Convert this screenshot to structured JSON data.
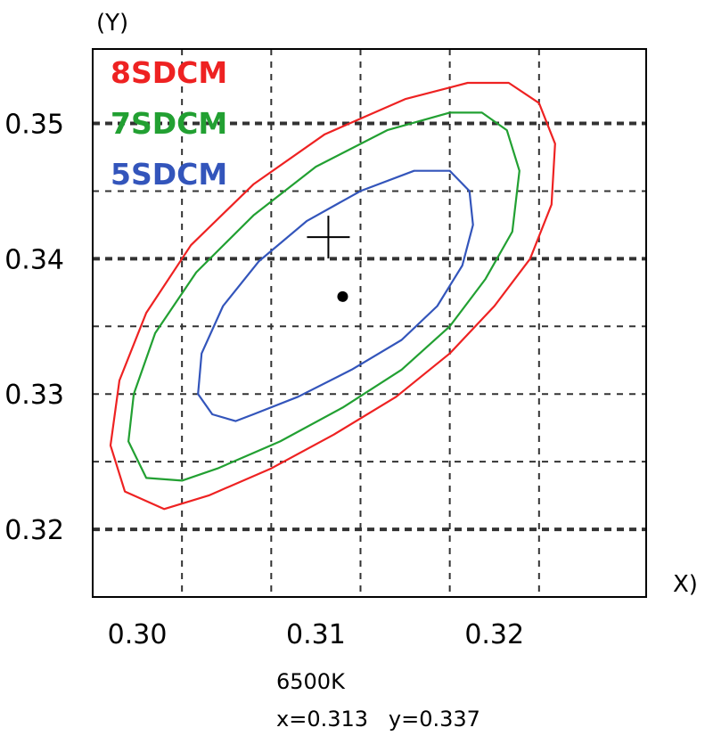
{
  "chart_data": {
    "type": "line",
    "title": "",
    "xlabel": "X)",
    "ylabel": "(Y)",
    "xlim": [
      0.2975,
      0.3285
    ],
    "ylim": [
      0.315,
      0.3555
    ],
    "x_ticks": [
      {
        "value": 0.3,
        "label": "0.30"
      },
      {
        "value": 0.31,
        "label": "0.31"
      },
      {
        "value": 0.32,
        "label": "0.32"
      }
    ],
    "y_ticks": [
      {
        "value": 0.32,
        "label": "0.32"
      },
      {
        "value": 0.33,
        "label": "0.33"
      },
      {
        "value": 0.34,
        "label": "0.34"
      },
      {
        "value": 0.35,
        "label": "0.35"
      }
    ],
    "grid_x": [
      0.3025,
      0.3075,
      0.3125,
      0.3175,
      0.3225
    ],
    "grid_y_major": [
      0.32,
      0.34,
      0.35
    ],
    "grid_y_minor": [
      0.325,
      0.33,
      0.335,
      0.345
    ],
    "grid": true,
    "legend_position": "top-left",
    "series": [
      {
        "name": "8SDCM",
        "color": "#ee2222",
        "closed": true,
        "points": [
          [
            0.3208,
            0.353
          ],
          [
            0.3225,
            0.3515
          ],
          [
            0.3234,
            0.3485
          ],
          [
            0.3232,
            0.344
          ],
          [
            0.322,
            0.34
          ],
          [
            0.32,
            0.3365
          ],
          [
            0.3175,
            0.333
          ],
          [
            0.3145,
            0.3298
          ],
          [
            0.311,
            0.327
          ],
          [
            0.3075,
            0.3245
          ],
          [
            0.304,
            0.3225
          ],
          [
            0.3015,
            0.3215
          ],
          [
            0.2993,
            0.3228
          ],
          [
            0.2985,
            0.3262
          ],
          [
            0.299,
            0.331
          ],
          [
            0.3005,
            0.336
          ],
          [
            0.303,
            0.341
          ],
          [
            0.3065,
            0.3455
          ],
          [
            0.3105,
            0.3492
          ],
          [
            0.315,
            0.3518
          ],
          [
            0.3185,
            0.353
          ]
        ]
      },
      {
        "name": "7SDCM",
        "color": "#22a032",
        "closed": true,
        "points": [
          [
            0.3193,
            0.3508
          ],
          [
            0.3207,
            0.3495
          ],
          [
            0.3214,
            0.3465
          ],
          [
            0.321,
            0.342
          ],
          [
            0.3195,
            0.3385
          ],
          [
            0.3175,
            0.335
          ],
          [
            0.3148,
            0.3318
          ],
          [
            0.3115,
            0.329
          ],
          [
            0.308,
            0.3265
          ],
          [
            0.3045,
            0.3245
          ],
          [
            0.3025,
            0.3236
          ],
          [
            0.3005,
            0.3238
          ],
          [
            0.2995,
            0.3265
          ],
          [
            0.2998,
            0.33
          ],
          [
            0.301,
            0.3345
          ],
          [
            0.3033,
            0.339
          ],
          [
            0.3065,
            0.3432
          ],
          [
            0.31,
            0.3468
          ],
          [
            0.314,
            0.3495
          ],
          [
            0.3175,
            0.3508
          ]
        ]
      },
      {
        "name": "5SDCM",
        "color": "#3355bb",
        "closed": true,
        "points": [
          [
            0.3175,
            0.3465
          ],
          [
            0.3186,
            0.345
          ],
          [
            0.3188,
            0.3425
          ],
          [
            0.3182,
            0.3395
          ],
          [
            0.3168,
            0.3365
          ],
          [
            0.3148,
            0.334
          ],
          [
            0.312,
            0.3318
          ],
          [
            0.309,
            0.3298
          ],
          [
            0.3065,
            0.3285
          ],
          [
            0.3055,
            0.328
          ],
          [
            0.3042,
            0.3285
          ],
          [
            0.3034,
            0.33
          ],
          [
            0.3036,
            0.333
          ],
          [
            0.3048,
            0.3365
          ],
          [
            0.3068,
            0.3398
          ],
          [
            0.3095,
            0.3428
          ],
          [
            0.3125,
            0.345
          ],
          [
            0.3155,
            0.3465
          ]
        ]
      }
    ],
    "center_point": {
      "x": 0.3115,
      "y": 0.3372
    },
    "crosshair": {
      "x": 0.3107,
      "y": 0.3416
    },
    "annotations": {
      "cct": "6500K",
      "coords": "x=0.313   y=0.337"
    }
  }
}
